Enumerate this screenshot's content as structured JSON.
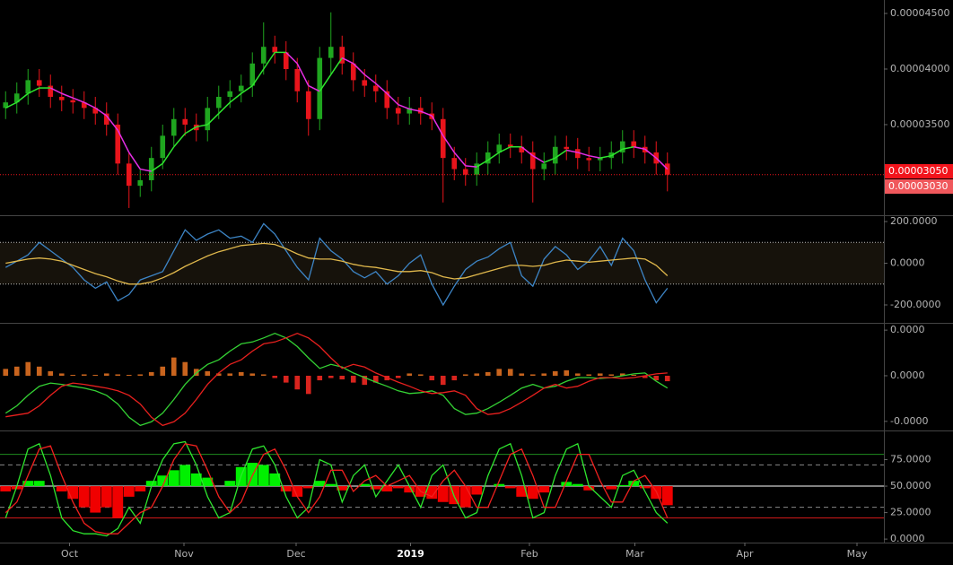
{
  "chart_data": [
    {
      "type": "candlestick",
      "open": [
        3.65e-05,
        3.7e-05,
        3.78e-05,
        3.9e-05,
        3.85e-05,
        3.75e-05,
        3.72e-05,
        3.7e-05,
        3.65e-05,
        3.6e-05,
        3.5e-05,
        3.15e-05,
        2.95e-05,
        3e-05,
        3.2e-05,
        3.4e-05,
        3.55e-05,
        3.5e-05,
        3.45e-05,
        3.65e-05,
        3.75e-05,
        3.8e-05,
        3.85e-05,
        4.05e-05,
        4.2e-05,
        4.15e-05,
        4e-05,
        3.8e-05,
        3.55e-05,
        4.1e-05,
        4.2e-05,
        4.05e-05,
        3.9e-05,
        3.85e-05,
        3.8e-05,
        3.65e-05,
        3.6e-05,
        3.65e-05,
        3.6e-05,
        3.55e-05,
        3.2e-05,
        3.1e-05,
        3.05e-05,
        3.15e-05,
        3.25e-05,
        3.32e-05,
        3.3e-05,
        3.25e-05,
        3.1e-05,
        3.15e-05,
        3.3e-05,
        3.28e-05,
        3.2e-05,
        3.18e-05,
        3.2e-05,
        3.25e-05,
        3.35e-05,
        3.3e-05,
        3.25e-05,
        3.15e-05
      ],
      "high": [
        3.8e-05,
        3.88e-05,
        4e-05,
        4e-05,
        3.95e-05,
        3.85e-05,
        3.82e-05,
        3.8e-05,
        3.75e-05,
        3.7e-05,
        3.6e-05,
        3.25e-05,
        3.1e-05,
        3.3e-05,
        3.5e-05,
        3.65e-05,
        3.65e-05,
        3.6e-05,
        3.75e-05,
        3.85e-05,
        3.9e-05,
        3.95e-05,
        4.15e-05,
        4.42e-05,
        4.3e-05,
        4.25e-05,
        4.1e-05,
        3.9e-05,
        4.2e-05,
        4.51e-05,
        4.3e-05,
        4.15e-05,
        4e-05,
        3.95e-05,
        3.9e-05,
        3.75e-05,
        3.75e-05,
        3.75e-05,
        3.7e-05,
        3.65e-05,
        3.3e-05,
        3.2e-05,
        3.25e-05,
        3.35e-05,
        3.42e-05,
        3.42e-05,
        3.4e-05,
        3.35e-05,
        3.25e-05,
        3.4e-05,
        3.4e-05,
        3.38e-05,
        3.3e-05,
        3.3e-05,
        3.35e-05,
        3.45e-05,
        3.45e-05,
        3.4e-05,
        3.35e-05,
        3.25e-05
      ],
      "low": [
        3.55e-05,
        3.6e-05,
        3.68e-05,
        3.75e-05,
        3.65e-05,
        3.62e-05,
        3.6e-05,
        3.55e-05,
        3.5e-05,
        3.4e-05,
        3.05e-05,
        2.75e-05,
        2.85e-05,
        2.9e-05,
        3.1e-05,
        3.3e-05,
        3.4e-05,
        3.35e-05,
        3.35e-05,
        3.55e-05,
        3.65e-05,
        3.7e-05,
        3.75e-05,
        3.95e-05,
        4.05e-05,
        3.9e-05,
        3.7e-05,
        3.4e-05,
        3.45e-05,
        3.95e-05,
        3.95e-05,
        3.8e-05,
        3.75e-05,
        3.7e-05,
        3.55e-05,
        3.5e-05,
        3.5e-05,
        3.5e-05,
        3.45e-05,
        2.8e-05,
        3e-05,
        2.95e-05,
        2.95e-05,
        3.05e-05,
        3.15e-05,
        3.2e-05,
        3.15e-05,
        2.8e-05,
        3e-05,
        3.05e-05,
        3.18e-05,
        3.1e-05,
        3.08e-05,
        3.08e-05,
        3.1e-05,
        3.15e-05,
        3.2e-05,
        3.15e-05,
        3.05e-05,
        2.9e-05
      ],
      "close": [
        3.7e-05,
        3.78e-05,
        3.9e-05,
        3.85e-05,
        3.75e-05,
        3.72e-05,
        3.7e-05,
        3.65e-05,
        3.6e-05,
        3.5e-05,
        3.15e-05,
        2.95e-05,
        3e-05,
        3.2e-05,
        3.4e-05,
        3.55e-05,
        3.5e-05,
        3.45e-05,
        3.65e-05,
        3.75e-05,
        3.8e-05,
        3.85e-05,
        4.05e-05,
        4.2e-05,
        4.15e-05,
        4e-05,
        3.8e-05,
        3.55e-05,
        4.1e-05,
        4.2e-05,
        4.05e-05,
        3.9e-05,
        3.85e-05,
        3.8e-05,
        3.65e-05,
        3.6e-05,
        3.65e-05,
        3.6e-05,
        3.55e-05,
        3.2e-05,
        3.1e-05,
        3.05e-05,
        3.15e-05,
        3.25e-05,
        3.32e-05,
        3.3e-05,
        3.25e-05,
        3.1e-05,
        3.15e-05,
        3.3e-05,
        3.28e-05,
        3.2e-05,
        3.18e-05,
        3.2e-05,
        3.25e-05,
        3.35e-05,
        3.3e-05,
        3.25e-05,
        3.15e-05,
        3.05e-05
      ],
      "ma": [
        3.65e-05,
        3.7e-05,
        3.78e-05,
        3.83e-05,
        3.83e-05,
        3.78e-05,
        3.74e-05,
        3.7e-05,
        3.65e-05,
        3.58e-05,
        3.45e-05,
        3.25e-05,
        3.1e-05,
        3.08e-05,
        3.15e-05,
        3.3e-05,
        3.42e-05,
        3.48e-05,
        3.5e-05,
        3.6e-05,
        3.7e-05,
        3.78e-05,
        3.85e-05,
        4e-05,
        4.15e-05,
        4.15e-05,
        4.05e-05,
        3.85e-05,
        3.8e-05,
        3.95e-05,
        4.1e-05,
        4.05e-05,
        3.95e-05,
        3.87e-05,
        3.78e-05,
        3.68e-05,
        3.64e-05,
        3.62e-05,
        3.58e-05,
        3.4e-05,
        3.25e-05,
        3.13e-05,
        3.12e-05,
        3.18e-05,
        3.25e-05,
        3.3e-05,
        3.3e-05,
        3.22e-05,
        3.16e-05,
        3.2e-05,
        3.27e-05,
        3.25e-05,
        3.22e-05,
        3.2e-05,
        3.22e-05,
        3.28e-05,
        3.3e-05,
        3.28e-05,
        3.2e-05,
        3.1e-05
      ],
      "up_color": "#1fa51f",
      "down_color": "#e8141b",
      "ma_up_color": "#2ee62e",
      "ma_down_color": "#e62ee6",
      "ylim": [
        2.685e-05,
        4.621e-05
      ],
      "yticks": [
        {
          "value": 4.5e-05,
          "label": "0.00004500"
        },
        {
          "value": 4e-05,
          "label": "0.00004000"
        },
        {
          "value": 3.5e-05,
          "label": "0.00003500"
        }
      ],
      "price_labels": [
        {
          "value": 3.05e-05,
          "label": "0.00003050",
          "color": "#f2141c"
        },
        {
          "value": 3.03e-05,
          "label": "0.00003030",
          "color": "#f0585c"
        }
      ]
    },
    {
      "type": "line",
      "series": [
        {
          "color": "#3d85c6",
          "values": [
            -20,
            10,
            40,
            100,
            60,
            20,
            -20,
            -80,
            -120,
            -90,
            -180,
            -150,
            -80,
            -60,
            -40,
            60,
            160,
            110,
            140,
            160,
            120,
            130,
            100,
            190,
            140,
            60,
            -20,
            -80,
            120,
            60,
            20,
            -40,
            -70,
            -40,
            -100,
            -60,
            0,
            40,
            -100,
            -200,
            -110,
            -30,
            10,
            30,
            70,
            100,
            -60,
            -110,
            20,
            80,
            40,
            -30,
            10,
            80,
            -10,
            120,
            60,
            -80,
            -190,
            -120
          ]
        },
        {
          "color": "#e0b84c",
          "values": [
            0,
            10,
            20,
            25,
            20,
            10,
            -10,
            -30,
            -50,
            -65,
            -85,
            -100,
            -100,
            -90,
            -70,
            -45,
            -15,
            10,
            35,
            55,
            70,
            85,
            90,
            95,
            90,
            70,
            45,
            25,
            20,
            20,
            10,
            -5,
            -15,
            -20,
            -30,
            -40,
            -40,
            -35,
            -45,
            -65,
            -75,
            -70,
            -55,
            -40,
            -25,
            -10,
            -10,
            -15,
            -10,
            5,
            15,
            10,
            5,
            10,
            15,
            20,
            25,
            20,
            -10,
            -60
          ]
        }
      ],
      "band": [
        100,
        -100
      ],
      "band_color": "#16120b",
      "ylim": [
        -286,
        226
      ],
      "yticks": [
        {
          "value": 200,
          "label": "200.0000"
        },
        {
          "value": 0,
          "label": "0.0000"
        },
        {
          "value": -200,
          "label": "-200.0000"
        }
      ]
    },
    {
      "type": "combo",
      "series": [
        {
          "color": "#34d134",
          "values": [
            -8.2e-07,
            -6.6e-07,
            -4.3e-07,
            -2.3e-07,
            -1.6e-07,
            -1.9e-07,
            -2.3e-07,
            -2.7e-07,
            -3.3e-07,
            -4.3e-07,
            -6.2e-07,
            -9.1e-07,
            -1.09e-06,
            -1.01e-06,
            -8.2e-07,
            -5.2e-07,
            -1.9e-07,
            6e-08,
            2.5e-07,
            3.5e-07,
            5.4e-07,
            7e-07,
            7.4e-07,
            8.3e-07,
            9.3e-07,
            8.3e-07,
            6.4e-07,
            3.9e-07,
            1.6e-07,
            2.5e-07,
            1.9e-07,
            6e-08,
            -4e-08,
            -1.4e-07,
            -2.3e-07,
            -3.3e-07,
            -3.9e-07,
            -3.7e-07,
            -3.3e-07,
            -4.3e-07,
            -7.2e-07,
            -8.5e-07,
            -8.2e-07,
            -7.2e-07,
            -5.8e-07,
            -4.3e-07,
            -2.7e-07,
            -1.9e-07,
            -2.7e-07,
            -2.3e-07,
            -1.2e-07,
            -4e-08,
            -4e-08,
            -6e-08,
            -4e-08,
            0,
            4e-08,
            6e-08,
            -1.2e-07,
            -2.7e-07
          ]
        },
        {
          "color": "#e8201e",
          "values": [
            -9e-07,
            -8.6e-07,
            -8.2e-07,
            -6.6e-07,
            -4.3e-07,
            -2.3e-07,
            -1.6e-07,
            -1.9e-07,
            -2.3e-07,
            -2.7e-07,
            -3.3e-07,
            -4.3e-07,
            -6.2e-07,
            -9.1e-07,
            -1.09e-06,
            -1.01e-06,
            -8.2e-07,
            -5.2e-07,
            -1.9e-07,
            6e-08,
            2.5e-07,
            3.5e-07,
            5.4e-07,
            7e-07,
            7.4e-07,
            8.3e-07,
            9.3e-07,
            8.3e-07,
            6.4e-07,
            3.9e-07,
            1.6e-07,
            2.5e-07,
            1.9e-07,
            6e-08,
            -4e-08,
            -1.4e-07,
            -2.3e-07,
            -3.3e-07,
            -3.9e-07,
            -3.7e-07,
            -3.3e-07,
            -4.3e-07,
            -7.2e-07,
            -8.5e-07,
            -8.2e-07,
            -7.2e-07,
            -5.8e-07,
            -4.3e-07,
            -2.7e-07,
            -1.9e-07,
            -2.7e-07,
            -2.3e-07,
            -1.2e-07,
            -4e-08,
            -4e-08,
            -6e-08,
            -4e-08,
            0,
            4e-08,
            6e-08
          ]
        }
      ],
      "histogram": {
        "values": [
          1.5e-07,
          2e-07,
          3e-07,
          2e-07,
          1e-07,
          5e-08,
          2e-08,
          3e-08,
          2e-08,
          5e-08,
          3e-08,
          2e-08,
          3e-08,
          8e-08,
          2e-07,
          4e-07,
          3e-07,
          1.5e-07,
          1e-07,
          5e-08,
          5e-08,
          8e-08,
          5e-08,
          3e-08,
          -5e-08,
          -1.5e-07,
          -3e-07,
          -4e-07,
          -1e-07,
          -5e-08,
          -8e-08,
          -1.5e-07,
          -2e-07,
          -1.5e-07,
          -1e-07,
          -5e-08,
          5e-08,
          3e-08,
          -1e-07,
          -2e-07,
          -1e-07,
          3e-08,
          5e-08,
          8e-08,
          1.5e-07,
          1.5e-07,
          5e-08,
          3e-08,
          5e-08,
          1e-07,
          1.2e-07,
          5e-08,
          3e-08,
          5e-08,
          3e-08,
          5e-08,
          2e-08,
          -5e-08,
          -1e-07,
          -1.2e-07
        ],
        "base": 0,
        "up_color": "#c8641e",
        "down_color": "#d8241e"
      },
      "ylim": [
        -1.2e-06,
        1.14e-06
      ],
      "yticks": [
        {
          "value": 1e-06,
          "label": "0.0000"
        },
        {
          "value": 0,
          "label": "0.0000"
        },
        {
          "value": -1e-06,
          "label": "-0.0000"
        }
      ]
    },
    {
      "type": "combo",
      "series": [
        {
          "color": "#2ee62e",
          "values": [
            20,
            50,
            85,
            90,
            60,
            20,
            8,
            5,
            5,
            3,
            10,
            30,
            15,
            50,
            75,
            90,
            92,
            70,
            40,
            20,
            25,
            60,
            85,
            88,
            70,
            40,
            20,
            30,
            75,
            70,
            35,
            60,
            70,
            40,
            55,
            70,
            50,
            30,
            60,
            70,
            40,
            20,
            25,
            60,
            85,
            90,
            60,
            20,
            25,
            60,
            85,
            90,
            50,
            40,
            30,
            60,
            65,
            45,
            25,
            15
          ]
        },
        {
          "color": "#f0201e",
          "values": [
            25,
            35,
            60,
            85,
            88,
            60,
            35,
            15,
            7,
            5,
            5,
            15,
            25,
            30,
            50,
            75,
            90,
            88,
            65,
            40,
            25,
            35,
            60,
            80,
            85,
            65,
            40,
            25,
            40,
            65,
            65,
            45,
            55,
            60,
            50,
            55,
            60,
            45,
            40,
            55,
            65,
            50,
            30,
            30,
            55,
            80,
            85,
            60,
            30,
            30,
            55,
            80,
            80,
            55,
            35,
            35,
            55,
            60,
            45,
            20
          ]
        }
      ],
      "histogram": {
        "values": [
          45,
          47,
          55,
          55,
          50,
          45,
          38,
          30,
          25,
          30,
          20,
          40,
          45,
          55,
          60,
          65,
          70,
          62,
          58,
          50,
          55,
          68,
          72,
          70,
          62,
          45,
          40,
          48,
          55,
          52,
          46,
          50,
          52,
          47,
          45,
          48,
          44,
          40,
          38,
          35,
          33,
          30,
          42,
          50,
          52,
          48,
          40,
          38,
          44,
          50,
          54,
          52,
          46,
          50,
          47,
          51,
          55,
          48,
          38,
          32
        ],
        "base": 50,
        "up_color": "#00f000",
        "down_color": "#f00000"
      },
      "hlines": [
        {
          "value": 80,
          "color": "#1e8c1e",
          "dash": false
        },
        {
          "value": 20,
          "color": "#d01818",
          "dash": false
        },
        {
          "value": 70,
          "color": "#888888",
          "dash": true
        },
        {
          "value": 30,
          "color": "#888888",
          "dash": true
        }
      ],
      "ylim": [
        -3.3,
        101.7
      ],
      "yticks": [
        {
          "value": 75,
          "label": "75.0000"
        },
        {
          "value": 50,
          "label": "50.0000"
        },
        {
          "value": 25,
          "label": "25.0000"
        },
        {
          "value": 0,
          "label": "0.0000"
        }
      ],
      "xlim": [
        -0.5,
        78.3
      ],
      "xticks": [
        {
          "value": 5.7,
          "label": "Oct"
        },
        {
          "value": 15.9,
          "label": "Nov"
        },
        {
          "value": 25.9,
          "label": "Dec"
        },
        {
          "value": 36.1,
          "label": "2019"
        },
        {
          "value": 46.7,
          "label": "Feb"
        },
        {
          "value": 56.1,
          "label": "Mar"
        },
        {
          "value": 65.9,
          "label": "Apr"
        },
        {
          "value": 75.9,
          "label": "May"
        }
      ]
    }
  ]
}
